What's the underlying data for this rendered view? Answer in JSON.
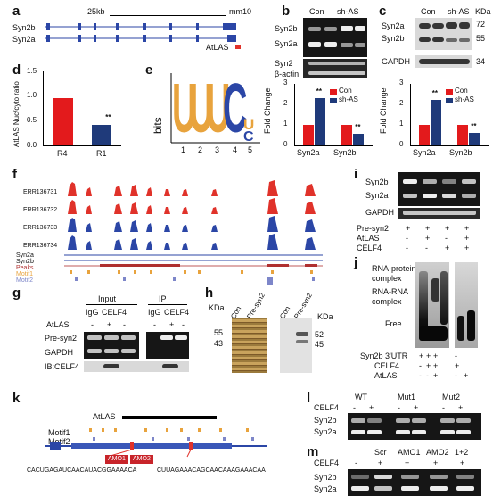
{
  "panels": {
    "a": {
      "label": "a",
      "scale_text": "25kb",
      "mm_text": "mm10",
      "tracks": [
        "Syn2b",
        "Syn2a"
      ],
      "atlas": "AtLAS"
    },
    "b": {
      "label": "b",
      "lanes": [
        "Con",
        "sh-AS"
      ],
      "rows": [
        "Syn2b",
        "Syn2a",
        "Syn2",
        "β-actin"
      ],
      "chart": {
        "ylabel": "Fold Change",
        "categories": [
          "Syn2a",
          "Syn2b"
        ],
        "legend": [
          "Con",
          "sh-AS"
        ],
        "yticks": [
          "0",
          "1",
          "2",
          "3"
        ]
      }
    },
    "c": {
      "label": "c",
      "lanes": [
        "Con",
        "sh-AS"
      ],
      "kda": "KDa",
      "rows": [
        "Syn2a",
        "Syn2b",
        "GAPDH"
      ],
      "markers": [
        "72",
        "55",
        "34"
      ],
      "chart": {
        "ylabel": "Fold Change",
        "categories": [
          "Syn2a",
          "Syn2b"
        ],
        "legend": [
          "Con",
          "sh-AS"
        ],
        "yticks": [
          "0",
          "1",
          "2",
          "3"
        ]
      }
    },
    "d": {
      "label": "d",
      "ylabel": "AtLAS Nuc/cyto ratio",
      "categories": [
        "R4",
        "R1"
      ],
      "yticks": [
        "0.0",
        "0.5",
        "1.0",
        "1.5"
      ]
    },
    "e": {
      "label": "e",
      "ylabel": "bits",
      "positions": [
        "1",
        "2",
        "3",
        "4",
        "5"
      ],
      "letters": [
        "U",
        "U",
        "U",
        "C",
        "U",
        "C"
      ]
    },
    "f": {
      "label": "f",
      "tracks": [
        "ERR136731",
        "ERR136732",
        "ERR136733",
        "ERR136734"
      ],
      "annotations": [
        "Syn2a",
        "Syn2b",
        "Peaks",
        "Motif1",
        "Motif2"
      ]
    },
    "g": {
      "label": "g",
      "headers": [
        "Input",
        "IP"
      ],
      "sub": [
        "IgG",
        "CELF4",
        "IgG",
        "CELF4"
      ],
      "atlas": "AtLAS",
      "signs": [
        "-",
        "+",
        "-",
        "-",
        "+",
        "-"
      ],
      "rows": [
        "Pre-syn2",
        "GAPDH",
        "IB:CELF4"
      ]
    },
    "h": {
      "label": "h",
      "kda": "KDa",
      "lanes": [
        "Con",
        "Pre-syn2",
        "Con",
        "Pre-syn2"
      ],
      "markers_left": [
        "55",
        "43"
      ],
      "markers_right": [
        "52",
        "45"
      ]
    },
    "i": {
      "label": "i",
      "rows": [
        "Syn2b",
        "Syn2a",
        "GAPDH"
      ],
      "cond": [
        "Pre-syn2",
        "AtLAS",
        "CELF4"
      ],
      "signs": [
        [
          "+",
          "+",
          "+",
          "+"
        ],
        [
          "-",
          "+",
          "-",
          "+"
        ],
        [
          "-",
          "-",
          "+",
          "+"
        ]
      ]
    },
    "j": {
      "label": "j",
      "labels": [
        "RNA-protein complex",
        "RNA-RNA complex",
        "Free"
      ],
      "cond": [
        "Syn2b 3'UTR",
        "CELF4",
        "AtLAS"
      ],
      "signs": [
        [
          "+",
          "+",
          "+",
          "-"
        ],
        [
          "-",
          "+",
          "+",
          "+"
        ],
        [
          "-",
          "-",
          "+",
          "-",
          "+"
        ]
      ]
    },
    "k": {
      "label": "k",
      "atlas": "AtLAS",
      "motifs": [
        "Motif1",
        "Motif2"
      ],
      "amo": [
        "AMO1",
        "AMO2"
      ],
      "seq1": "CACUGAGAUCAACAUACGGAAAACA",
      "seq2": "CUUAGAAACAGCAACAAAGAAACAA"
    },
    "l": {
      "label": "l",
      "lanes": [
        "WT",
        "Mut1",
        "Mut2"
      ],
      "cond": "CELF4",
      "signs": [
        "-",
        "+",
        "-",
        "+",
        "-",
        "+"
      ],
      "rows": [
        "Syn2b",
        "Syn2a"
      ]
    },
    "m": {
      "label": "m",
      "lanes": [
        "Scr",
        "AMO1",
        "AMO2",
        "1+2"
      ],
      "cond": "CELF4",
      "signs": [
        "-",
        "+",
        "+",
        "+",
        "+"
      ],
      "rows": [
        "Syn2b",
        "Syn2a"
      ]
    }
  },
  "colors": {
    "con": "#e31a1c",
    "sh": "#1f3a7a",
    "red_track": "#e0322a",
    "blue_track": "#2b46a6",
    "orange": "#e8a33d",
    "motif2": "#7d86c9",
    "peak": "#b03030"
  },
  "chart_data": [
    {
      "type": "bar",
      "title": "",
      "ylabel": "Fold Change",
      "categories": [
        "Syn2a",
        "Syn2b"
      ],
      "series": [
        {
          "name": "Con",
          "values": [
            1.0,
            1.0
          ]
        },
        {
          "name": "sh-AS",
          "values": [
            2.3,
            0.55
          ]
        }
      ],
      "ylim": [
        0,
        3
      ]
    },
    {
      "type": "bar",
      "title": "",
      "ylabel": "Fold Change",
      "categories": [
        "Syn2a",
        "Syn2b"
      ],
      "series": [
        {
          "name": "Con",
          "values": [
            1.0,
            1.0
          ]
        },
        {
          "name": "sh-AS",
          "values": [
            2.2,
            0.6
          ]
        }
      ],
      "ylim": [
        0,
        3
      ]
    },
    {
      "type": "bar",
      "title": "",
      "ylabel": "AtLAS Nuc/cyto ratio",
      "categories": [
        "R4",
        "R1"
      ],
      "values": [
        0.95,
        0.42
      ],
      "ylim": [
        0,
        1.5
      ]
    }
  ]
}
